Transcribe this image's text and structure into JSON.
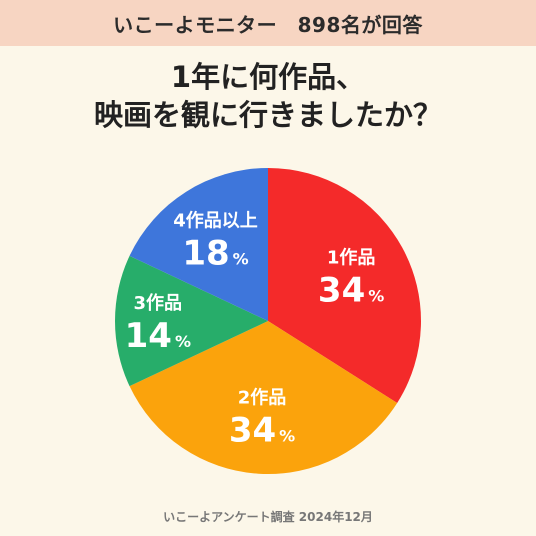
{
  "header": {
    "banner": "いこーよモニター　898名が回答"
  },
  "chart_data": {
    "type": "pie",
    "title_lines": [
      "1年に何作品、",
      "映画を観に行きましたか？"
    ],
    "categories": [
      "1作品",
      "2作品",
      "3作品",
      "4作品以上"
    ],
    "values": [
      34,
      34,
      14,
      18
    ],
    "value_unit": "%",
    "colors": [
      "#f42a2a",
      "#fba30c",
      "#27ad6a",
      "#3e76db"
    ],
    "start": "12 o'clock",
    "direction": "clockwise",
    "legend": "labels inside slices"
  },
  "footer": {
    "source": "いこーよアンケート調査 2024年12月"
  }
}
